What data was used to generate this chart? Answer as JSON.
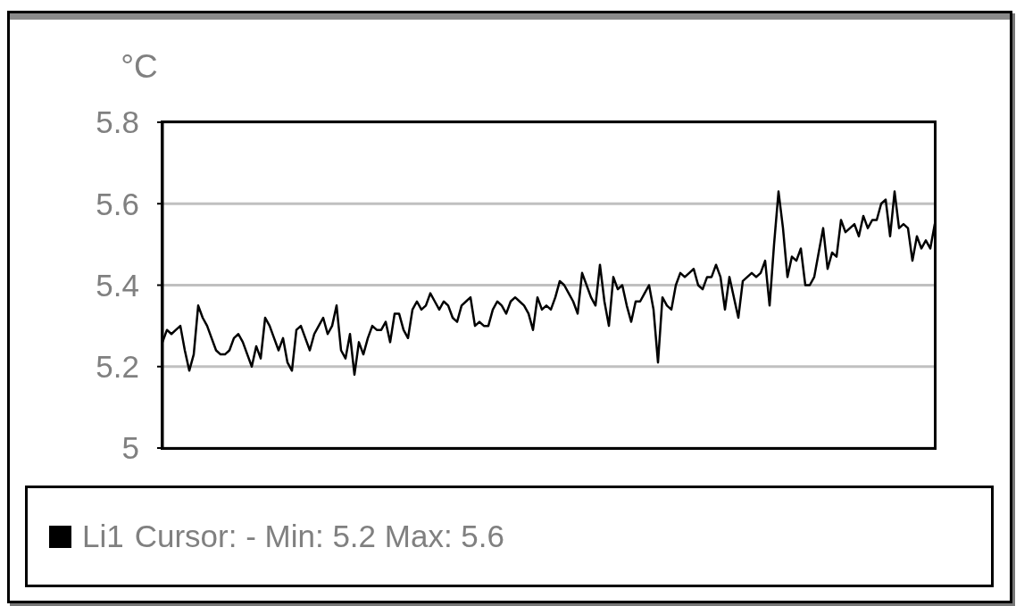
{
  "chart_data": {
    "type": "line",
    "ylabel": "°C",
    "annotations": [
      "Cursor: - Min: 5.2 Max: 5.6"
    ],
    "categories": [
      null,
      null,
      null,
      null,
      null,
      null,
      null,
      null,
      null,
      null,
      null,
      null,
      null,
      null,
      null,
      null,
      null,
      null,
      null,
      null,
      null,
      null,
      null,
      null,
      null,
      null,
      null,
      null,
      null,
      null,
      null,
      null,
      null,
      null,
      null,
      null,
      null,
      null,
      null,
      null,
      null,
      null,
      null,
      null,
      null,
      null,
      null,
      null,
      null,
      null,
      null,
      null,
      null,
      null,
      null,
      null,
      null,
      null,
      null,
      null,
      null,
      null,
      null,
      null,
      null,
      null,
      null,
      null,
      null,
      null,
      null,
      null,
      null,
      null,
      null,
      null,
      null,
      null,
      null,
      null,
      null,
      null,
      null,
      null,
      null,
      null,
      null,
      null,
      null,
      null,
      null,
      null,
      null,
      null,
      null,
      null,
      null,
      null,
      null,
      null,
      null,
      null,
      null,
      null,
      null,
      null,
      null,
      null,
      null,
      null,
      null,
      null,
      null,
      null,
      null,
      null,
      null,
      null,
      null,
      null,
      null,
      null,
      null,
      null,
      null,
      null,
      null,
      null,
      null,
      null,
      null,
      null,
      null,
      null,
      null,
      null,
      null,
      null,
      null,
      null,
      null,
      null,
      null,
      null,
      null,
      null,
      null,
      null,
      null,
      null,
      null,
      null,
      null,
      null,
      null,
      null,
      null,
      null,
      null,
      null,
      null,
      null,
      null,
      null,
      null,
      null,
      null,
      null,
      null,
      null,
      null,
      null,
      null,
      null
    ],
    "series": [
      {
        "name": "Li1",
        "color": "#000000",
        "values": [
          5.26,
          5.29,
          5.28,
          5.29,
          5.3,
          5.24,
          5.19,
          5.23,
          5.35,
          5.32,
          5.3,
          5.27,
          5.24,
          5.23,
          5.23,
          5.24,
          5.27,
          5.28,
          5.26,
          5.23,
          5.2,
          5.25,
          5.22,
          5.32,
          5.3,
          5.27,
          5.24,
          5.27,
          5.21,
          5.19,
          5.29,
          5.3,
          5.27,
          5.24,
          5.28,
          5.3,
          5.32,
          5.28,
          5.3,
          5.35,
          5.24,
          5.22,
          5.28,
          5.18,
          5.26,
          5.23,
          5.27,
          5.3,
          5.29,
          5.29,
          5.31,
          5.26,
          5.33,
          5.33,
          5.29,
          5.27,
          5.34,
          5.36,
          5.34,
          5.35,
          5.38,
          5.36,
          5.34,
          5.36,
          5.35,
          5.32,
          5.31,
          5.35,
          5.36,
          5.37,
          5.3,
          5.31,
          5.3,
          5.3,
          5.34,
          5.36,
          5.35,
          5.33,
          5.36,
          5.37,
          5.36,
          5.35,
          5.33,
          5.29,
          5.37,
          5.34,
          5.35,
          5.34,
          5.37,
          5.41,
          5.4,
          5.38,
          5.36,
          5.33,
          5.43,
          5.4,
          5.37,
          5.35,
          5.45,
          5.36,
          5.3,
          5.42,
          5.39,
          5.4,
          5.35,
          5.31,
          5.36,
          5.36,
          5.38,
          5.4,
          5.34,
          5.21,
          5.37,
          5.35,
          5.34,
          5.4,
          5.43,
          5.42,
          5.43,
          5.44,
          5.4,
          5.39,
          5.42,
          5.42,
          5.45,
          5.42,
          5.34,
          5.42,
          5.37,
          5.32,
          5.41,
          5.42,
          5.43,
          5.42,
          5.43,
          5.46,
          5.35,
          5.5,
          5.63,
          5.54,
          5.42,
          5.47,
          5.46,
          5.49,
          5.4,
          5.4,
          5.42,
          5.48,
          5.54,
          5.44,
          5.48,
          5.47,
          5.56,
          5.53,
          5.54,
          5.55,
          5.52,
          5.57,
          5.54,
          5.56,
          5.56,
          5.6,
          5.61,
          5.52,
          5.63,
          5.54,
          5.55,
          5.54,
          5.46,
          5.52,
          5.49,
          5.51,
          5.49,
          5.55
        ]
      }
    ],
    "ylim": [
      5,
      5.8
    ],
    "yticks": [
      5,
      5.2,
      5.4,
      5.6,
      5.8
    ],
    "grid": "y",
    "legend": "bottom"
  }
}
